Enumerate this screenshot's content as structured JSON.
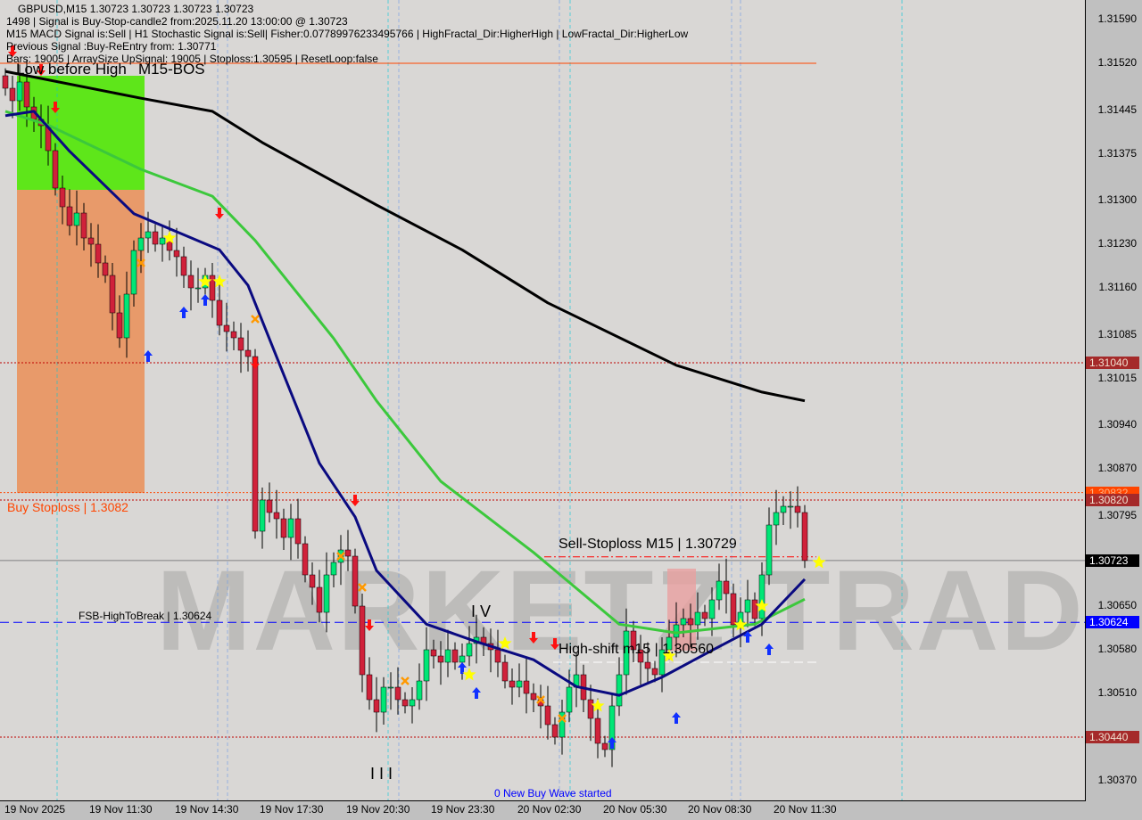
{
  "header": {
    "symbol_line": "GBPUSD,M15  1.30723 1.30723 1.30723 1.30723",
    "signal_line": "1498 | Signal is Buy-Stop-candle2 from:2025.11.20 13:00:00 @ 1.30723",
    "indicators_line": "M15 MACD Signal is:Sell | H1 Stochastic Signal is:Sell| Fisher:0.07789976233495766 | HighFractal_Dir:HigherHigh | LowFractal_Dir:HigherLow",
    "previous_line": "Previous Signal :Buy-ReEntry from: 1.30771",
    "bars_line": "Bars: 19005 | ArraySize UpSignal: 19005 | Stoploss:1.30595 | ResetLoop:false"
  },
  "annotations": {
    "low_before_high": "Low before High",
    "bos": "M15-BOS",
    "buy_stoploss": "Buy Stoploss | 1.3082",
    "sell_stoploss": "Sell-Stoploss M15 | 1.30729",
    "fsb": "FSB-HighToBreak | 1.30624",
    "high_shift": "High-shift m15 | 1.30560",
    "wave_iv": "I V",
    "wave_iii": "I I I",
    "new_wave": "0 New Buy Wave started",
    "watermark": "MARKETZ TRADE"
  },
  "colors": {
    "bull": "#00e676",
    "bear": "#d0213a",
    "ma_long": "#000000",
    "ma_mid": "#3cc83c",
    "ma_fast": "#0a0a80",
    "bos_zone": "#5ee61a",
    "sell_zone": "#e89a6a",
    "pink_zone": "#e8a0a0"
  },
  "chart_data": {
    "type": "candlestick",
    "symbol": "GBPUSD",
    "timeframe": "M15",
    "ylim": [
      1.3035,
      1.3162
    ],
    "y_ticks": [
      "1.31590",
      "1.31520",
      "1.31445",
      "1.31375",
      "1.31300",
      "1.31230",
      "1.31160",
      "1.31085",
      "1.31015",
      "1.30940",
      "1.30870",
      "1.30795",
      "1.30650",
      "1.30580",
      "1.30510",
      "1.30370"
    ],
    "x_ticks": [
      "19 Nov 2025",
      "19 Nov 11:30",
      "19 Nov 14:30",
      "19 Nov 17:30",
      "19 Nov 20:30",
      "19 Nov 23:30",
      "20 Nov 02:30",
      "20 Nov 05:30",
      "20 Nov 08:30",
      "20 Nov 11:30"
    ],
    "closes": [
      1.3148,
      1.3146,
      1.3149,
      1.3145,
      1.3143,
      1.3142,
      1.3138,
      1.3132,
      1.3129,
      1.3126,
      1.3128,
      1.3124,
      1.3123,
      1.312,
      1.3118,
      1.3112,
      1.3108,
      1.3115,
      1.3122,
      1.3124,
      1.3125,
      1.3123,
      1.3124,
      1.3122,
      1.3121,
      1.3118,
      1.3116,
      1.3116,
      1.3118,
      1.3114,
      1.311,
      1.3109,
      1.3108,
      1.3106,
      1.3105,
      1.3077,
      1.3082,
      1.308,
      1.3079,
      1.3076,
      1.3079,
      1.3075,
      1.307,
      1.3068,
      1.3064,
      1.307,
      1.3072,
      1.3074,
      1.3073,
      1.3065,
      1.3054,
      1.305,
      1.3048,
      1.3052,
      1.3052,
      1.305,
      1.3049,
      1.305,
      1.3053,
      1.3058,
      1.3057,
      1.3056,
      1.3058,
      1.3056,
      1.3057,
      1.3059,
      1.306,
      1.3059,
      1.3058,
      1.3056,
      1.3053,
      1.3052,
      1.3053,
      1.3051,
      1.305,
      1.3049,
      1.3046,
      1.3044,
      1.3048,
      1.3052,
      1.3054,
      1.305,
      1.3047,
      1.3043,
      1.3042,
      1.3049,
      1.3054,
      1.3061,
      1.3058,
      1.3056,
      1.3055,
      1.3054,
      1.3058,
      1.306,
      1.3062,
      1.3063,
      1.3062,
      1.3064,
      1.3063,
      1.3066,
      1.3069,
      1.3067,
      1.3062,
      1.3064,
      1.3066,
      1.3063,
      1.307,
      1.3078,
      1.308,
      1.3081,
      1.3081,
      1.308,
      1.30723
    ],
    "moving_averages": [
      {
        "color_key": "ma_long",
        "points": [
          [
            0,
            1.31507
          ],
          [
            19,
            1.31464
          ],
          [
            29,
            1.31443
          ],
          [
            36,
            1.31393
          ],
          [
            52,
            1.31293
          ],
          [
            64,
            1.31221
          ],
          [
            76,
            1.31136
          ],
          [
            94,
            1.31036
          ],
          [
            106,
            1.30993
          ],
          [
            112,
            1.30979
          ]
        ]
      },
      {
        "color_key": "ma_mid",
        "points": [
          [
            0,
            1.31443
          ],
          [
            6,
            1.31421
          ],
          [
            19,
            1.3135
          ],
          [
            29,
            1.31307
          ],
          [
            35,
            1.31236
          ],
          [
            46,
            1.31079
          ],
          [
            52,
            1.30979
          ],
          [
            61,
            1.3085
          ],
          [
            74,
            1.30736
          ],
          [
            86,
            1.30621
          ],
          [
            94,
            1.30607
          ],
          [
            105,
            1.30621
          ],
          [
            112,
            1.30661
          ]
        ]
      },
      {
        "color_key": "ma_fast",
        "points": [
          [
            0,
            1.31436
          ],
          [
            4,
            1.31443
          ],
          [
            9,
            1.31379
          ],
          [
            18,
            1.31279
          ],
          [
            24,
            1.3125
          ],
          [
            30,
            1.31221
          ],
          [
            34,
            1.31164
          ],
          [
            39,
            1.31021
          ],
          [
            44,
            1.30879
          ],
          [
            49,
            1.30793
          ],
          [
            52,
            1.30707
          ],
          [
            59,
            1.30621
          ],
          [
            66,
            1.30593
          ],
          [
            74,
            1.30564
          ],
          [
            80,
            1.30521
          ],
          [
            86,
            1.30507
          ],
          [
            92,
            1.30536
          ],
          [
            99,
            1.30579
          ],
          [
            106,
            1.30621
          ],
          [
            112,
            1.30693
          ]
        ]
      }
    ],
    "levels": [
      {
        "price": 1.3152,
        "color": "#ff4500",
        "style": "solid"
      },
      {
        "price": 1.3104,
        "color": "#c00000",
        "style": "dotted",
        "tag": "1.31040",
        "tag_bg": "#a52a2a",
        "tag_fg": "#f0e0d0"
      },
      {
        "price": 1.30832,
        "color": "#ff4500",
        "style": "dotted",
        "tag": "1.30832",
        "tag_bg": "#ff4500",
        "tag_fg": "#ffb080"
      },
      {
        "price": 1.3082,
        "color": "#c00000",
        "style": "dotted",
        "tag": "1.30820",
        "tag_bg": "#a52a2a",
        "tag_fg": "#f0e0d0"
      },
      {
        "price": 1.30729,
        "color": "#ff0000",
        "style": "dashdot"
      },
      {
        "price": 1.30723,
        "color": "#808080",
        "style": "solid",
        "tag": "1.30723",
        "tag_bg": "#000000",
        "tag_fg": "#ffffff"
      },
      {
        "price": 1.30624,
        "color": "#0000ff",
        "style": "dashed",
        "tag": "1.30624",
        "tag_bg": "#0000ff",
        "tag_fg": "#ffffff"
      },
      {
        "price": 1.3056,
        "color": "#ffffff",
        "style": "dashed"
      },
      {
        "price": 1.3044,
        "color": "#c00000",
        "style": "dotted",
        "tag": "1.30440",
        "tag_bg": "#a52a2a",
        "tag_fg": "#f0e0d0"
      }
    ],
    "signals": [
      {
        "type": "sell-arrow",
        "i": 1,
        "price": 1.3154
      },
      {
        "type": "sell-arrow",
        "i": 5,
        "price": 1.3151
      },
      {
        "type": "sell-arrow",
        "i": 7,
        "price": 1.3145
      },
      {
        "type": "buy-arrow",
        "i": 20,
        "price": 1.3105
      },
      {
        "type": "buy-arrow",
        "i": 25,
        "price": 1.3112
      },
      {
        "type": "buy-arrow",
        "i": 28,
        "price": 1.3114
      },
      {
        "type": "sell-arrow",
        "i": 30,
        "price": 1.3128
      },
      {
        "type": "sell-arrow",
        "i": 35,
        "price": 1.3104
      },
      {
        "type": "sell-arrow",
        "i": 49,
        "price": 1.3082
      },
      {
        "type": "sell-arrow",
        "i": 51,
        "price": 1.3062
      },
      {
        "type": "buy-arrow",
        "i": 64,
        "price": 1.3055
      },
      {
        "type": "buy-arrow",
        "i": 66,
        "price": 1.3051
      },
      {
        "type": "sell-arrow",
        "i": 74,
        "price": 1.306
      },
      {
        "type": "sell-arrow",
        "i": 77,
        "price": 1.3059
      },
      {
        "type": "buy-arrow",
        "i": 85,
        "price": 1.3043
      },
      {
        "type": "buy-arrow",
        "i": 94,
        "price": 1.3047
      },
      {
        "type": "buy-arrow",
        "i": 104,
        "price": 1.306
      },
      {
        "type": "buy-arrow",
        "i": 107,
        "price": 1.3058
      },
      {
        "type": "star",
        "i": 23,
        "price": 1.3124
      },
      {
        "type": "star",
        "i": 28,
        "price": 1.3117
      },
      {
        "type": "star",
        "i": 30,
        "price": 1.3117
      },
      {
        "type": "star",
        "i": 65,
        "price": 1.3054
      },
      {
        "type": "star",
        "i": 70,
        "price": 1.3059
      },
      {
        "type": "star",
        "i": 83,
        "price": 1.3049
      },
      {
        "type": "star",
        "i": 93,
        "price": 1.3057
      },
      {
        "type": "star",
        "i": 103,
        "price": 1.3062
      },
      {
        "type": "star",
        "i": 106,
        "price": 1.3065
      },
      {
        "type": "star",
        "i": 114,
        "price": 1.3072
      },
      {
        "type": "x-mark",
        "i": 19,
        "price": 1.312
      },
      {
        "type": "x-mark",
        "i": 35,
        "price": 1.3111
      },
      {
        "type": "x-mark",
        "i": 47,
        "price": 1.3073
      },
      {
        "type": "x-mark",
        "i": 50,
        "price": 1.3068
      },
      {
        "type": "x-mark",
        "i": 56,
        "price": 1.3053
      },
      {
        "type": "x-mark",
        "i": 75,
        "price": 1.305
      },
      {
        "type": "x-mark",
        "i": 78,
        "price": 1.3047
      }
    ]
  }
}
